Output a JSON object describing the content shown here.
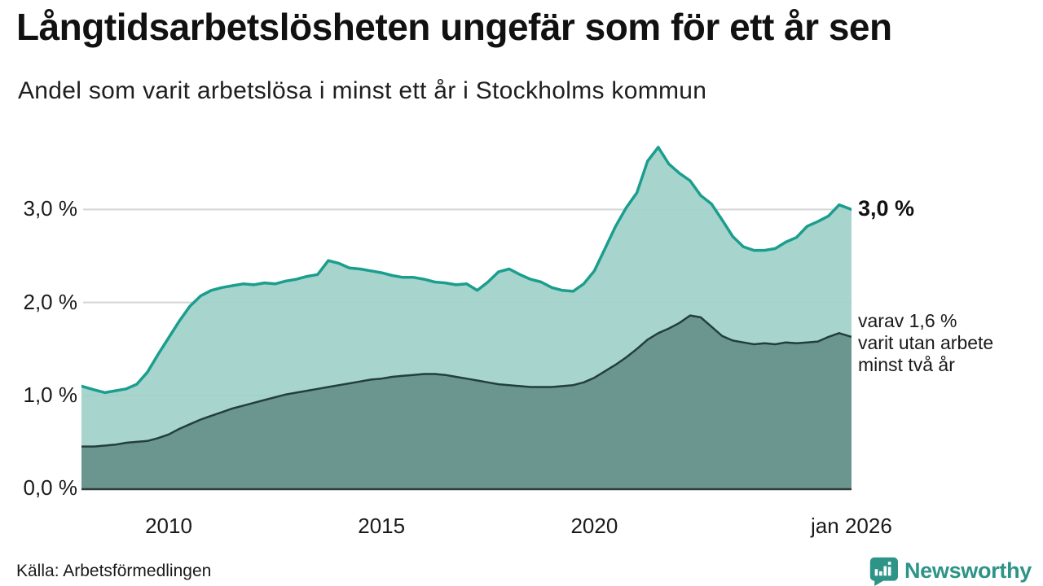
{
  "header": {
    "title": "Långtidsarbetslösheten ungefär som för ett år sen",
    "subtitle": "Andel som varit arbetslösa i minst ett år i Stockholms kommun"
  },
  "annotations": {
    "end_total": "3,0 %",
    "end_detail": "varav 1,6 %\nvarit utan arbete\nminst två år"
  },
  "footer": {
    "source": "Källa: Arbetsförmedlingen",
    "brand": "Newsworthy"
  },
  "colors": {
    "line_total": "#1b9e8e",
    "fill_total": "#9fd1c9",
    "line_two_years": "#233f3a",
    "fill_two_years": "#68938c",
    "gridline": "#d4d4d4",
    "axis": "#2e3d3a",
    "brand_teal": "#2e9488"
  },
  "chart_data": {
    "type": "area",
    "title": "Långtidsarbetslösheten ungefär som för ett år sen",
    "subtitle": "Andel som varit arbetslösa i minst ett år i Stockholms kommun",
    "source": "Källa: Arbetsförmedlingen",
    "grid": true,
    "legend_position": "right-annotations",
    "ylim": [
      0,
      3.9
    ],
    "x_range": [
      2008,
      2026.04
    ],
    "y_ticks": [
      {
        "value": 0,
        "label": "0,0 %"
      },
      {
        "value": 1,
        "label": "1,0 %"
      },
      {
        "value": 2,
        "label": "2,0 %"
      },
      {
        "value": 3,
        "label": "3,0 %"
      }
    ],
    "x_ticks": [
      {
        "year": 2010,
        "label": "2010"
      },
      {
        "year": 2015,
        "label": "2015"
      },
      {
        "year": 2020,
        "label": "2020"
      },
      {
        "year": 2026.04,
        "label": "jan 2026"
      }
    ],
    "x": [
      2008.0,
      2008.25,
      2008.5,
      2008.75,
      2009.0,
      2009.25,
      2009.5,
      2009.75,
      2010.0,
      2010.25,
      2010.5,
      2010.75,
      2011.0,
      2011.25,
      2011.5,
      2011.75,
      2012.0,
      2012.25,
      2012.5,
      2012.75,
      2013.0,
      2013.25,
      2013.5,
      2013.75,
      2014.0,
      2014.25,
      2014.5,
      2014.75,
      2015.0,
      2015.25,
      2015.5,
      2015.75,
      2016.0,
      2016.25,
      2016.5,
      2016.75,
      2017.0,
      2017.25,
      2017.5,
      2017.75,
      2018.0,
      2018.25,
      2018.5,
      2018.75,
      2019.0,
      2019.25,
      2019.5,
      2019.75,
      2020.0,
      2020.25,
      2020.5,
      2020.75,
      2021.0,
      2021.25,
      2021.5,
      2021.75,
      2022.0,
      2022.25,
      2022.5,
      2022.75,
      2023.0,
      2023.25,
      2023.5,
      2023.75,
      2024.0,
      2024.25,
      2024.5,
      2024.75,
      2025.0,
      2025.25,
      2025.5,
      2025.75,
      2026.0
    ],
    "series": [
      {
        "name": "Andel som varit arbetslösa i minst ett år",
        "end_value_label": "3,0 %",
        "line_color": "#1b9e8e",
        "fill_color": "#9fd1c9",
        "values": [
          1.1,
          1.06,
          1.03,
          1.05,
          1.07,
          1.12,
          1.25,
          1.44,
          1.62,
          1.8,
          1.96,
          2.07,
          2.13,
          2.16,
          2.18,
          2.2,
          2.19,
          2.21,
          2.2,
          2.23,
          2.25,
          2.28,
          2.3,
          2.45,
          2.42,
          2.37,
          2.36,
          2.34,
          2.32,
          2.29,
          2.27,
          2.27,
          2.25,
          2.22,
          2.21,
          2.19,
          2.2,
          2.13,
          2.22,
          2.33,
          2.36,
          2.3,
          2.25,
          2.22,
          2.16,
          2.13,
          2.12,
          2.2,
          2.34,
          2.58,
          2.82,
          3.02,
          3.18,
          3.52,
          3.67,
          3.49,
          3.39,
          3.31,
          3.15,
          3.06,
          2.89,
          2.71,
          2.6,
          2.56,
          2.56,
          2.58,
          2.65,
          2.7,
          2.82,
          2.87,
          2.93,
          3.05,
          3.0
        ]
      },
      {
        "name": "varav utan arbete minst två år",
        "end_value_label": "varav 1,6 %",
        "line_color": "#233f3a",
        "fill_color": "#68938c",
        "values": [
          0.45,
          0.45,
          0.46,
          0.47,
          0.49,
          0.5,
          0.51,
          0.54,
          0.58,
          0.64,
          0.69,
          0.74,
          0.78,
          0.82,
          0.86,
          0.89,
          0.92,
          0.95,
          0.98,
          1.01,
          1.03,
          1.05,
          1.07,
          1.09,
          1.11,
          1.13,
          1.15,
          1.17,
          1.18,
          1.2,
          1.21,
          1.22,
          1.23,
          1.23,
          1.22,
          1.2,
          1.18,
          1.16,
          1.14,
          1.12,
          1.11,
          1.1,
          1.09,
          1.09,
          1.09,
          1.1,
          1.11,
          1.14,
          1.19,
          1.26,
          1.33,
          1.41,
          1.5,
          1.6,
          1.67,
          1.72,
          1.78,
          1.86,
          1.84,
          1.74,
          1.64,
          1.59,
          1.57,
          1.55,
          1.56,
          1.55,
          1.57,
          1.56,
          1.57,
          1.58,
          1.63,
          1.67,
          1.63
        ]
      }
    ]
  }
}
